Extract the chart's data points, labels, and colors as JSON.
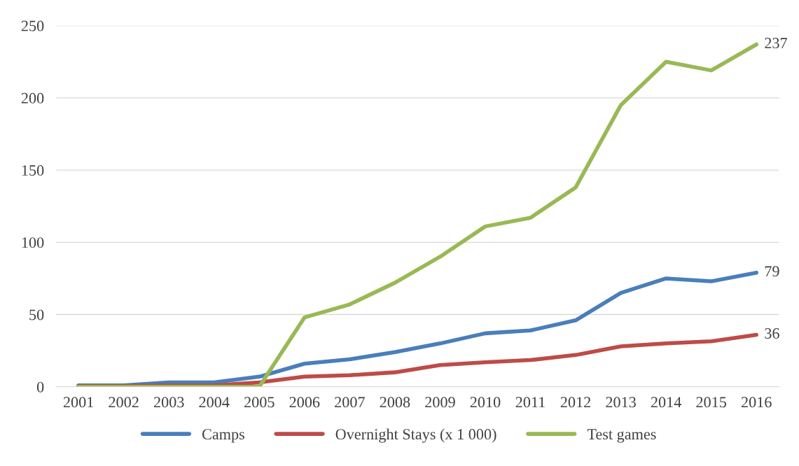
{
  "chart_data": {
    "type": "line",
    "categories": [
      "2001",
      "2002",
      "2003",
      "2004",
      "2005",
      "2006",
      "2007",
      "2008",
      "2009",
      "2010",
      "2011",
      "2012",
      "2013",
      "2014",
      "2015",
      "2016"
    ],
    "series": [
      {
        "name": "Camps",
        "color": "#4a7ebb",
        "values": [
          1,
          1,
          3,
          3,
          7,
          16,
          19,
          24,
          30,
          37,
          39,
          46,
          65,
          75,
          73,
          79
        ]
      },
      {
        "name": "Overnight Stays (x 1 000)",
        "color": "#be4b48",
        "values": [
          0.5,
          0.5,
          1,
          1,
          3,
          7,
          8,
          10,
          15,
          17,
          18.5,
          22,
          28,
          30,
          31.5,
          36
        ]
      },
      {
        "name": "Test games",
        "color": "#98b954",
        "values": [
          0,
          0,
          0,
          0,
          0,
          48,
          57,
          72,
          90,
          111,
          117,
          138,
          195,
          225,
          219,
          237
        ]
      }
    ],
    "annotations": [
      {
        "text": "237",
        "x": "2016",
        "y": 237
      },
      {
        "text": "79",
        "x": "2016",
        "y": 79
      },
      {
        "text": "36",
        "x": "2016",
        "y": 36
      }
    ],
    "ylim": [
      0,
      250
    ],
    "yticks": [
      0,
      50,
      100,
      150,
      200,
      250
    ],
    "grid": "y",
    "legend": "bottom",
    "marker": "none",
    "line_style": "solid"
  }
}
